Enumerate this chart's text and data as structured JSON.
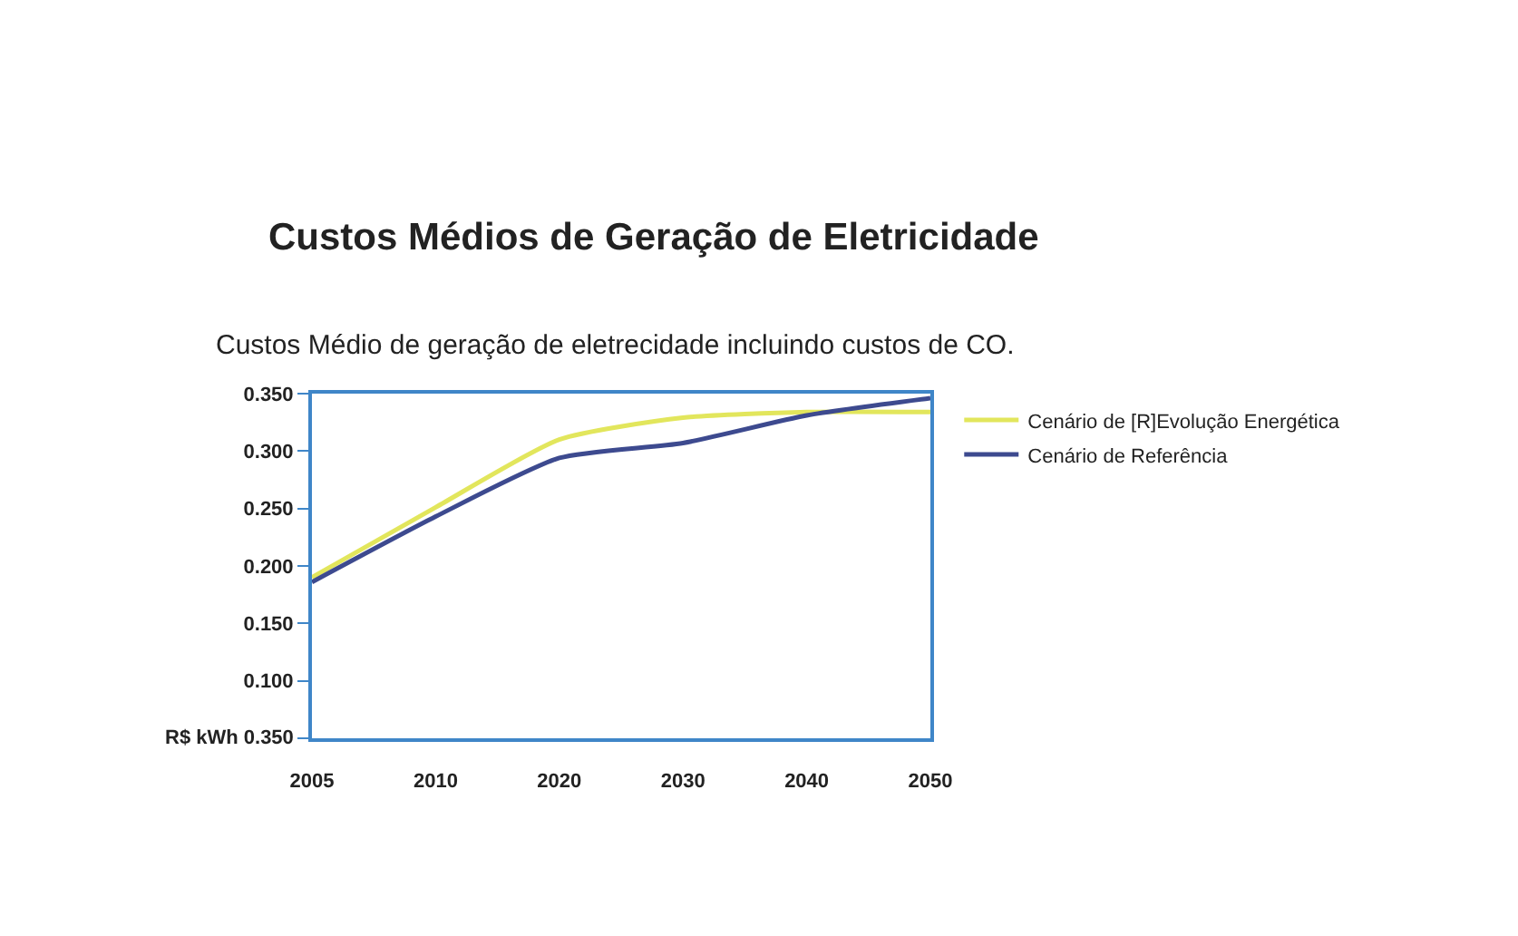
{
  "chart_data": {
    "type": "line",
    "title": "Custos Médios de Geração de Eletricidade",
    "subtitle": "Custos Médio de geração de eletrecidade incluindo custos de CO.",
    "ylabel": "R$ kWh 0.350",
    "categories": [
      "2005",
      "2010",
      "2020",
      "2030",
      "2040",
      "2050"
    ],
    "series": [
      {
        "name": "Cenário de [R]Evolução Energética",
        "color": "#e2e65c",
        "values": [
          0.19,
          0.251,
          0.31,
          0.329,
          0.334,
          0.334
        ]
      },
      {
        "name": "Cenário de Referência",
        "color": "#3d4a8f",
        "values": [
          0.186,
          0.243,
          0.294,
          0.307,
          0.331,
          0.346
        ]
      }
    ],
    "ylim": [
      0.05,
      0.35
    ],
    "yticks": [
      {
        "value": 0.05,
        "label": null
      },
      {
        "value": 0.1,
        "label": "0.100"
      },
      {
        "value": 0.15,
        "label": "0.150"
      },
      {
        "value": 0.2,
        "label": "0.200"
      },
      {
        "value": 0.25,
        "label": "0.250"
      },
      {
        "value": 0.3,
        "label": "0.300"
      },
      {
        "value": 0.35,
        "label": "0.350"
      }
    ],
    "grid": false,
    "legend": "right",
    "line_style": "solid"
  }
}
